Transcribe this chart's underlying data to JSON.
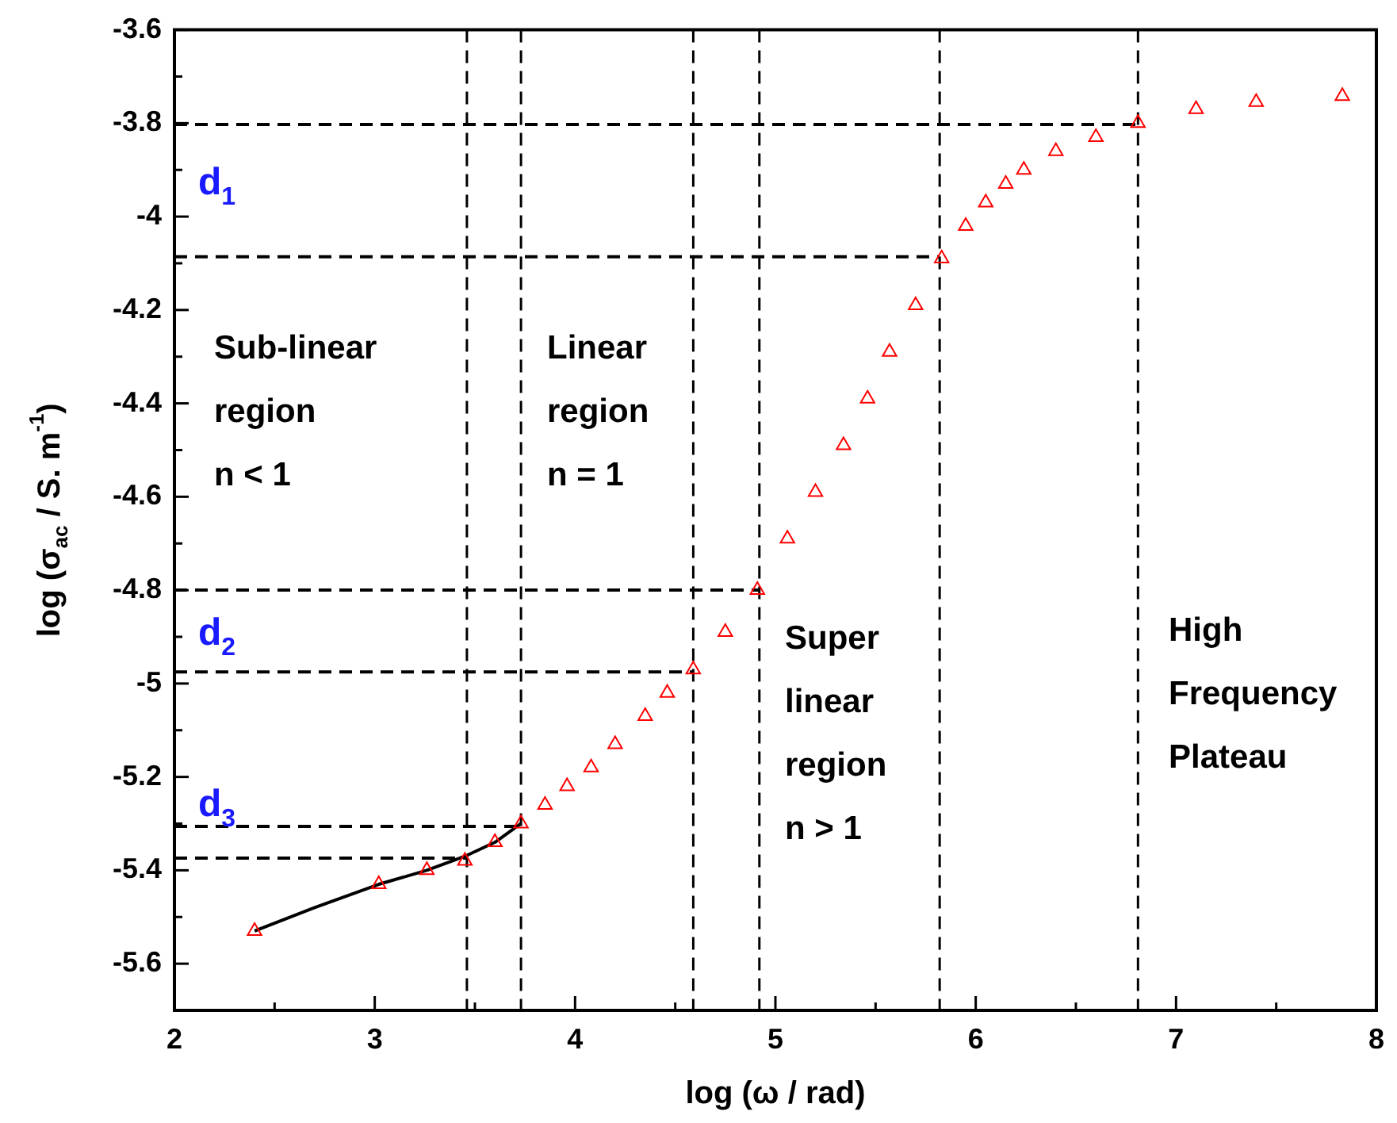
{
  "chart_data": {
    "type": "scatter",
    "xlabel": "log (ω / rad)",
    "ylabel": "log (σ$_{ac}$ / S. m$^{-1}$)",
    "xlim": [
      2,
      8
    ],
    "ylim": [
      -5.7,
      -3.6
    ],
    "xticks": [
      2,
      {
        "value": 2.5,
        "label": null
      },
      3,
      {
        "value": 3.5,
        "label": null
      },
      4,
      {
        "value": 4.5,
        "label": null
      },
      5,
      {
        "value": 5.5,
        "label": null
      },
      6,
      {
        "value": 6.5,
        "label": null
      },
      7,
      {
        "value": 7.5,
        "label": null
      },
      8
    ],
    "yticks": [
      {
        "value": -5.7,
        "label": null
      },
      -5.6,
      {
        "value": -5.5,
        "label": null
      },
      -5.4,
      {
        "value": -5.3,
        "label": null
      },
      -5.2,
      {
        "value": -5.1,
        "label": null
      },
      -5.0,
      {
        "value": -4.9,
        "label": null
      },
      -4.8,
      {
        "value": -4.7,
        "label": null
      },
      -4.6,
      {
        "value": -4.5,
        "label": null
      },
      -4.4,
      {
        "value": -4.3,
        "label": null
      },
      -4.2,
      {
        "value": -4.1,
        "label": null
      },
      -4.0,
      {
        "value": -3.9,
        "label": null
      },
      -3.8,
      {
        "value": -3.7,
        "label": null
      },
      -3.6
    ],
    "grid": false,
    "legend": false,
    "series": [
      {
        "type": "scatter",
        "color": "#ff0000",
        "marker": "triangle",
        "x": [
          2.4,
          3.02,
          3.26,
          3.45,
          3.6,
          3.73,
          3.85,
          3.96,
          4.08,
          4.2,
          4.35,
          4.46,
          4.59,
          4.75,
          4.91,
          5.06,
          5.2,
          5.34,
          5.46,
          5.57,
          5.7,
          5.83,
          5.95,
          6.05,
          6.15,
          6.24,
          6.4,
          6.6,
          6.81,
          7.1,
          7.4,
          7.83
        ],
        "values": [
          -5.53,
          -5.43,
          -5.4,
          -5.38,
          -5.34,
          -5.3,
          -5.26,
          -5.22,
          -5.18,
          -5.13,
          -5.07,
          -5.02,
          -4.97,
          -4.89,
          -4.8,
          -4.69,
          -4.59,
          -4.49,
          -4.39,
          -4.29,
          -4.19,
          -4.09,
          -4.02,
          -3.97,
          -3.93,
          -3.9,
          -3.86,
          -3.83,
          -3.8,
          -3.77,
          -3.755,
          -3.742
        ]
      },
      {
        "type": "line",
        "color": "#000000",
        "marker": "none",
        "line_style": "solid",
        "x": [
          2.4,
          2.7,
          3.02,
          3.26,
          3.45,
          3.6,
          3.73
        ],
        "values": [
          -5.53,
          -5.48,
          -5.43,
          -5.4,
          -5.37,
          -5.34,
          -5.3
        ]
      },
      {
        "type": "line",
        "color": "#000000",
        "marker": "none",
        "line_style": "dashed",
        "x": [
          2,
          6.81
        ],
        "values": [
          -3.803,
          -3.803
        ]
      },
      {
        "type": "line",
        "color": "#000000",
        "marker": "none",
        "line_style": "dashed",
        "x": [
          2,
          5.82
        ],
        "values": [
          -4.086,
          -4.086
        ]
      },
      {
        "type": "line",
        "color": "#000000",
        "marker": "none",
        "line_style": "dashed",
        "x": [
          2,
          4.92
        ],
        "values": [
          -4.8,
          -4.8
        ]
      },
      {
        "type": "line",
        "color": "#000000",
        "marker": "none",
        "line_style": "dashed",
        "x": [
          2,
          4.59
        ],
        "values": [
          -4.975,
          -4.975
        ]
      },
      {
        "type": "line",
        "color": "#000000",
        "marker": "none",
        "line_style": "dashed",
        "x": [
          2,
          3.73
        ],
        "values": [
          -5.306,
          -5.306
        ]
      },
      {
        "type": "line",
        "color": "#000000",
        "marker": "none",
        "line_style": "dashed",
        "x": [
          2,
          3.46
        ],
        "values": [
          -5.374,
          -5.374
        ]
      }
    ],
    "ref_lines": [
      {
        "axis": "x",
        "value": 3.46,
        "color": "#000000",
        "line_style": "dashed"
      },
      {
        "axis": "x",
        "value": 3.73,
        "color": "#000000",
        "line_style": "dashed"
      },
      {
        "axis": "x",
        "value": 4.59,
        "color": "#000000",
        "line_style": "dashed"
      },
      {
        "axis": "x",
        "value": 4.92,
        "color": "#000000",
        "line_style": "dashed"
      },
      {
        "axis": "x",
        "value": 5.82,
        "color": "#000000",
        "line_style": "dashed"
      },
      {
        "axis": "x",
        "value": 6.81,
        "color": "#000000",
        "line_style": "dashed"
      }
    ],
    "annotations": [
      "d$_{1}$",
      "d$_{2}$",
      "d$_{3}$",
      "Sub-linear\nregion\nn < 1",
      "Linear\nregion\nn = 1",
      "Super\nlinear\nregion\nn > 1",
      "High\nFrequency\nPlateau"
    ]
  }
}
